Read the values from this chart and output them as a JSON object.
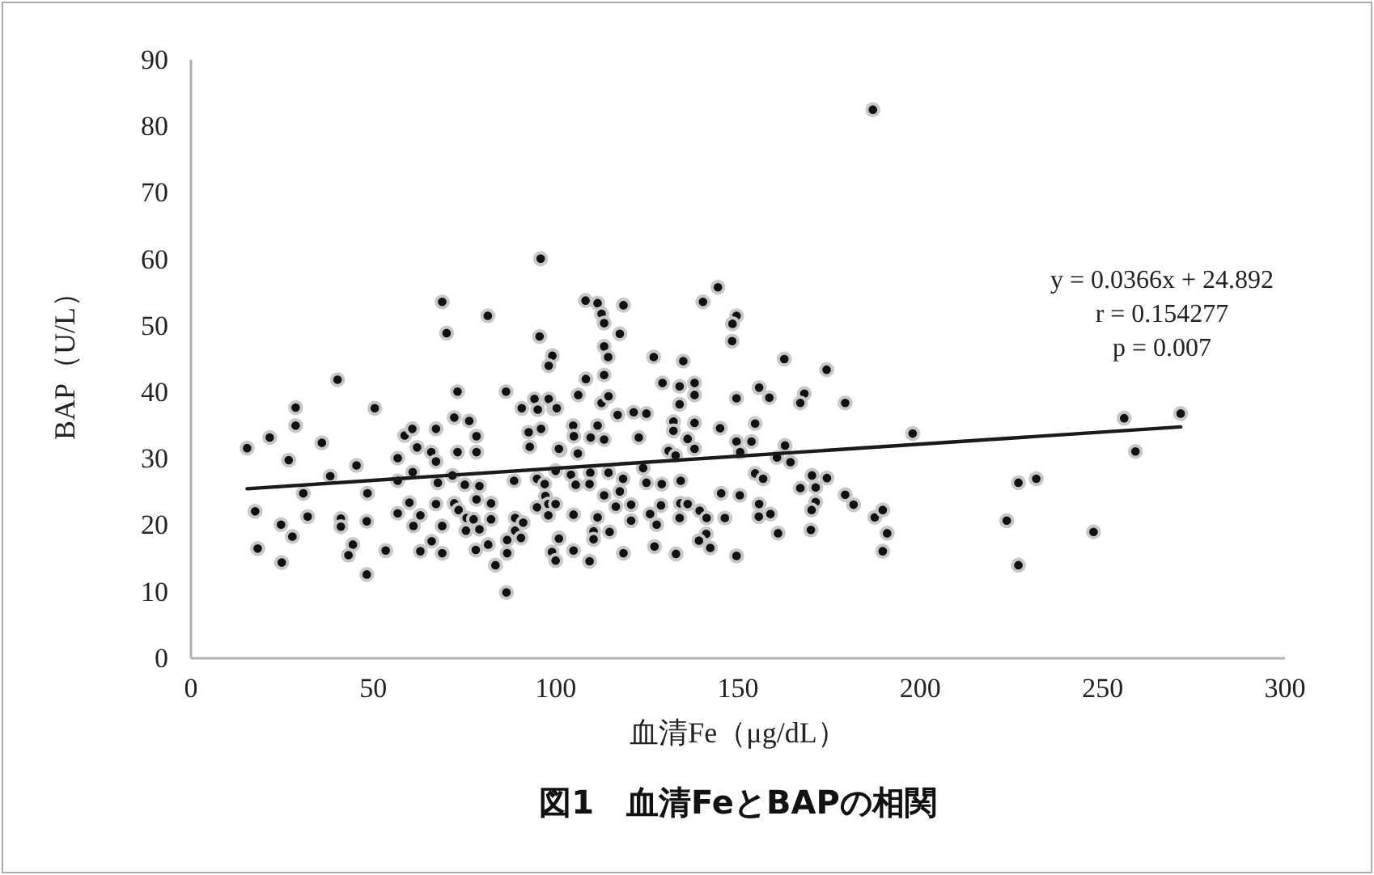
{
  "chart_data": {
    "type": "scatter",
    "title": "図1　血清FeとBAPの相関",
    "xlabel": "血清Fe（μg/dL）",
    "ylabel": "BAP（U/L）",
    "annotations": [
      "y = 0.0366x + 24.892",
      "r = 0.154277",
      "p = 0.007"
    ],
    "xlim": [
      0,
      300
    ],
    "xticks": [
      0,
      50,
      100,
      150,
      200,
      250,
      300
    ],
    "ylim": [
      0,
      90
    ],
    "yticks": [
      0,
      10,
      20,
      30,
      40,
      50,
      60,
      70,
      80,
      90
    ],
    "grid": false,
    "series": [
      {
        "color": "#111111",
        "marker": "circle",
        "x": [
          15.4,
          21.6,
          28.7,
          28.7,
          26.8,
          35.9,
          40.2,
          50.4,
          38.2,
          45.4,
          17.6,
          18.3,
          24.9,
          24.7,
          27.8,
          30.8,
          32.0,
          41.1,
          41.1,
          44.4,
          43.2,
          48.4,
          48.2,
          48.2,
          53.4,
          56.7,
          56.7,
          58.6,
          60.7,
          62.0,
          60.8,
          59.9,
          56.7,
          61.0,
          62.9,
          62.9,
          66.0,
          67.2,
          65.9,
          67.2,
          68.9,
          70.1,
          73.1,
          72.2,
          76.3,
          73.1,
          78.3,
          78.3,
          81.4,
          67.7,
          71.7,
          75.1,
          79.1,
          67.2,
          68.9,
          68.9,
          72.2,
          73.4,
          75.6,
          78.3,
          77.5,
          75.4,
          79.1,
          82.3,
          82.3,
          78.1,
          81.5,
          83.5,
          86.7,
          86.5,
          86.7,
          88.9,
          88.9,
          86.4,
          90.7,
          88.6,
          92.6,
          92.9,
          94.9,
          95.9,
          95.6,
          99.1,
          98.1,
          94.2,
          98.1,
          95.1,
          99.5,
          96.0,
          101.2,
          97.0,
          97.2,
          94.9,
          98.0,
          98.0,
          100.9,
          90.5,
          99.0,
          91.1,
          100.0,
          108.2,
          111.5,
          118.6,
          112.6,
          113.3,
          117.6,
          113.3,
          114.4,
          108.3,
          113.3,
          106.2,
          100.3,
          112.6,
          114.5,
          117.0,
          121.4,
          124.9,
          126.9,
          135.0,
          140.4,
          144.5,
          149.6,
          148.5,
          148.4,
          162.7,
          174.3,
          129.3,
          134.0,
          138.1,
          138.1,
          134.0,
          149.6,
          155.8,
          158.6,
          168.2,
          167.1,
          179.4,
          197.9,
          104.8,
          105.0,
          111.5,
          109.6,
          113.3,
          100.9,
          106.1,
          122.8,
          132.3,
          132.3,
          136.2,
          138.1,
          138.1,
          131.0,
          132.9,
          145.1,
          154.7,
          149.6,
          153.7,
          150.6,
          160.7,
          162.9,
          164.4,
          100.0,
          104.2,
          109.5,
          114.5,
          118.5,
          124.0,
          124.9,
          129.1,
          134.3,
          154.7,
          156.9,
          170.3,
          174.4,
          167.1,
          171.3,
          117.6,
          113.3,
          109.3,
          105.5,
          100.0,
          104.9,
          111.5,
          116.5,
          120.7,
          120.7,
          114.8,
          110.4,
          110.4,
          100.9,
          104.9,
          109.3,
          118.6,
          125.9,
          128.9,
          127.7,
          127.1,
          133.0,
          134.2,
          134.0,
          136.2,
          139.5,
          141.4,
          141.3,
          139.3,
          142.4,
          145.4,
          150.5,
          146.4,
          149.6,
          155.8,
          155.7,
          158.9,
          161.0,
          170.0,
          171.3,
          170.2,
          179.4,
          181.7,
          187.5,
          189.7,
          190.9,
          189.7,
          187.0,
          223.7,
          226.9,
          231.8,
          226.9,
          247.5,
          255.9,
          259.0,
          271.4
        ],
        "values": [
          31.6,
          33.2,
          37.7,
          35.0,
          29.8,
          32.4,
          41.9,
          37.6,
          27.4,
          29.0,
          22.1,
          16.5,
          14.4,
          20.1,
          18.3,
          24.8,
          21.3,
          21.0,
          19.8,
          17.1,
          15.5,
          24.8,
          20.6,
          12.6,
          16.2,
          30.1,
          26.7,
          33.5,
          34.5,
          31.7,
          28.0,
          23.4,
          21.8,
          19.9,
          21.5,
          16.1,
          17.6,
          34.5,
          31.0,
          29.6,
          53.6,
          48.9,
          40.1,
          36.2,
          35.7,
          31.0,
          33.4,
          31.0,
          51.5,
          26.4,
          27.5,
          26.1,
          25.9,
          23.2,
          19.9,
          15.8,
          23.3,
          22.3,
          21.1,
          23.9,
          20.9,
          19.2,
          19.4,
          23.3,
          20.9,
          16.3,
          17.1,
          14.0,
          15.8,
          9.9,
          17.8,
          19.2,
          21.1,
          40.1,
          37.6,
          26.7,
          34.0,
          31.8,
          27.0,
          60.1,
          48.4,
          45.5,
          44.0,
          39.0,
          39.0,
          37.4,
          37.5,
          34.5,
          31.3,
          26.2,
          24.4,
          22.7,
          23.2,
          21.5,
          18.1,
          18.1,
          16.0,
          20.4,
          14.7,
          53.8,
          53.4,
          53.1,
          51.8,
          50.4,
          48.8,
          46.9,
          45.3,
          42.0,
          42.6,
          39.6,
          37.6,
          38.4,
          39.4,
          36.6,
          37.0,
          36.8,
          45.3,
          44.7,
          53.6,
          55.8,
          51.5,
          50.3,
          47.7,
          45.0,
          43.4,
          41.4,
          40.9,
          41.4,
          39.6,
          38.2,
          39.1,
          40.7,
          39.2,
          39.8,
          38.4,
          38.4,
          33.8,
          35.0,
          33.4,
          35.0,
          33.2,
          32.9,
          31.5,
          30.8,
          33.2,
          35.6,
          34.2,
          33.0,
          35.4,
          31.5,
          31.2,
          30.5,
          34.6,
          35.3,
          32.6,
          32.6,
          31.0,
          30.2,
          32.0,
          29.5,
          28.2,
          27.6,
          27.9,
          27.9,
          27.0,
          28.6,
          26.4,
          26.2,
          26.7,
          27.8,
          27.0,
          27.5,
          27.1,
          25.6,
          25.7,
          25.1,
          24.5,
          26.2,
          26.1,
          23.2,
          21.6,
          21.2,
          22.8,
          23.1,
          20.7,
          19.0,
          19.1,
          17.9,
          18.0,
          16.2,
          14.6,
          15.8,
          21.7,
          23.0,
          20.1,
          16.8,
          15.7,
          23.3,
          21.1,
          23.2,
          22.2,
          21.1,
          18.7,
          17.7,
          16.6,
          24.8,
          24.5,
          21.1,
          15.4,
          23.2,
          21.3,
          21.7,
          18.8,
          19.3,
          23.5,
          22.3,
          24.6,
          23.1,
          21.2,
          22.3,
          18.8,
          16.1,
          82.5,
          20.7,
          26.4,
          27.0,
          14.0,
          19.0,
          36.1,
          31.1,
          36.8
        ]
      },
      {
        "type": "line",
        "color": "#1a1a1a",
        "line_style": "solid",
        "x": [
          15.4,
          271.4
        ],
        "values": [
          25.5,
          34.8
        ]
      }
    ]
  }
}
